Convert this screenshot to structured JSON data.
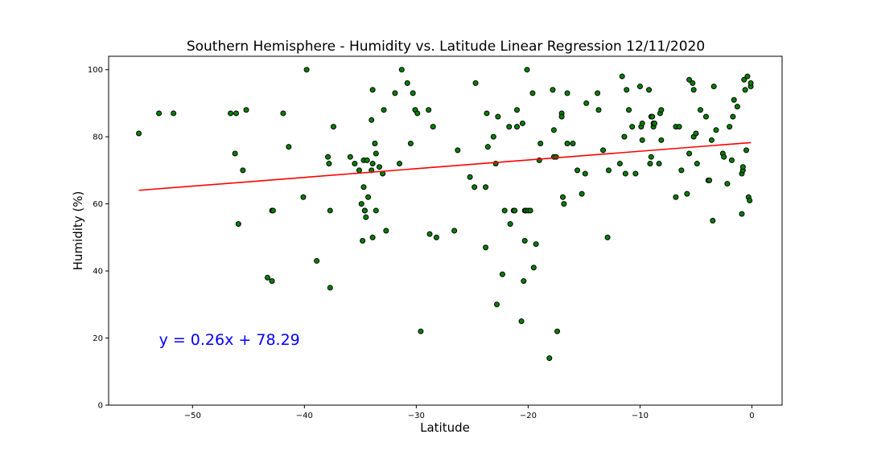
{
  "chart_data": {
    "type": "scatter",
    "title": "Southern Hemisphere - Humidity vs. Latitude Linear Regression 12/11/2020",
    "xlabel": "Latitude",
    "ylabel": "Humidity (%)",
    "xlim": [
      -57.5,
      2.7
    ],
    "ylim": [
      0,
      104
    ],
    "xticks": [
      -50,
      -40,
      -30,
      -20,
      -10,
      0
    ],
    "xtick_labels": [
      "−50",
      "−40",
      "−30",
      "−20",
      "−10",
      "0"
    ],
    "yticks": [
      0,
      20,
      40,
      60,
      80,
      100
    ],
    "ytick_labels": [
      "0",
      "20",
      "40",
      "60",
      "80",
      "100"
    ],
    "grid": false,
    "point_color": "#008000",
    "point_edge_color": "#000000",
    "line_color": "#ff0000",
    "equation_color": "#0000ff",
    "regression": {
      "slope": 0.26,
      "intercept": 78.29,
      "x_range": [
        -54.8,
        -0.1
      ]
    },
    "equation_text": "y = 0.26x + 78.29",
    "equation_position": {
      "x": -53,
      "y": 18
    },
    "points": [
      [
        -54.8,
        81
      ],
      [
        -53.0,
        87
      ],
      [
        -51.7,
        87
      ],
      [
        -46.6,
        87
      ],
      [
        -46.1,
        87
      ],
      [
        -46.2,
        75
      ],
      [
        -45.9,
        54
      ],
      [
        -45.5,
        70
      ],
      [
        -45.2,
        88
      ],
      [
        -43.3,
        38
      ],
      [
        -42.9,
        37
      ],
      [
        -42.9,
        58
      ],
      [
        -42.8,
        58
      ],
      [
        -41.9,
        87
      ],
      [
        -41.4,
        77
      ],
      [
        -40.1,
        62
      ],
      [
        -39.8,
        100
      ],
      [
        -38.9,
        43
      ],
      [
        -37.9,
        74
      ],
      [
        -37.8,
        72
      ],
      [
        -37.7,
        58
      ],
      [
        -37.7,
        35
      ],
      [
        -37.4,
        83
      ],
      [
        -35.9,
        74
      ],
      [
        -35.5,
        72
      ],
      [
        -35.1,
        70
      ],
      [
        -34.9,
        60
      ],
      [
        -34.7,
        73
      ],
      [
        -34.8,
        49
      ],
      [
        -34.6,
        58
      ],
      [
        -34.6,
        58
      ],
      [
        -34.5,
        56
      ],
      [
        -34.4,
        73
      ],
      [
        -34.7,
        65
      ],
      [
        -34.3,
        62
      ],
      [
        -34.0,
        70
      ],
      [
        -33.9,
        72
      ],
      [
        -33.9,
        50
      ],
      [
        -33.9,
        94
      ],
      [
        -34.0,
        85
      ],
      [
        -33.7,
        78
      ],
      [
        -33.6,
        75
      ],
      [
        -33.6,
        58
      ],
      [
        -33.3,
        71
      ],
      [
        -33.0,
        69
      ],
      [
        -32.9,
        88
      ],
      [
        -32.7,
        52
      ],
      [
        -31.9,
        93
      ],
      [
        -31.5,
        72
      ],
      [
        -31.3,
        100
      ],
      [
        -30.8,
        96
      ],
      [
        -30.5,
        78
      ],
      [
        -30.3,
        93
      ],
      [
        -30.1,
        88
      ],
      [
        -29.9,
        87
      ],
      [
        -29.6,
        22
      ],
      [
        -28.9,
        88
      ],
      [
        -28.8,
        51
      ],
      [
        -28.5,
        83
      ],
      [
        -28.2,
        50
      ],
      [
        -26.6,
        52
      ],
      [
        -26.3,
        76
      ],
      [
        -25.2,
        68
      ],
      [
        -24.8,
        65
      ],
      [
        -24.7,
        96
      ],
      [
        -23.8,
        65
      ],
      [
        -23.7,
        87
      ],
      [
        -23.6,
        77
      ],
      [
        -23.8,
        47
      ],
      [
        -23.1,
        80
      ],
      [
        -22.9,
        72
      ],
      [
        -22.7,
        86
      ],
      [
        -22.8,
        30
      ],
      [
        -22.3,
        39
      ],
      [
        -22.1,
        58
      ],
      [
        -21.7,
        83
      ],
      [
        -21.6,
        54
      ],
      [
        -21.3,
        58
      ],
      [
        -21.2,
        58
      ],
      [
        -21.0,
        88
      ],
      [
        -21.0,
        83
      ],
      [
        -20.6,
        25
      ],
      [
        -20.5,
        84
      ],
      [
        -20.3,
        49
      ],
      [
        -20.4,
        37
      ],
      [
        -20.3,
        58
      ],
      [
        -20.2,
        58
      ],
      [
        -20.1,
        100
      ],
      [
        -20.0,
        58
      ],
      [
        -19.8,
        58
      ],
      [
        -19.6,
        93
      ],
      [
        -19.5,
        41
      ],
      [
        -19.3,
        48
      ],
      [
        -19.0,
        73
      ],
      [
        -18.9,
        78
      ],
      [
        -18.1,
        14
      ],
      [
        -17.8,
        94
      ],
      [
        -17.7,
        74
      ],
      [
        -17.7,
        82
      ],
      [
        -17.5,
        74
      ],
      [
        -17.4,
        22
      ],
      [
        -17.0,
        87
      ],
      [
        -17.0,
        86
      ],
      [
        -16.9,
        62
      ],
      [
        -16.8,
        60
      ],
      [
        -16.5,
        93
      ],
      [
        -16.5,
        78
      ],
      [
        -16.0,
        78
      ],
      [
        -15.6,
        70
      ],
      [
        -15.2,
        63
      ],
      [
        -14.9,
        69
      ],
      [
        -14.8,
        90
      ],
      [
        -13.8,
        93
      ],
      [
        -13.7,
        88
      ],
      [
        -13.3,
        76
      ],
      [
        -12.9,
        50
      ],
      [
        -12.8,
        70
      ],
      [
        -11.8,
        72
      ],
      [
        -11.6,
        98
      ],
      [
        -11.4,
        80
      ],
      [
        -11.3,
        69
      ],
      [
        -11.2,
        94
      ],
      [
        -11.0,
        88
      ],
      [
        -10.7,
        83
      ],
      [
        -10.4,
        69
      ],
      [
        -10.0,
        95
      ],
      [
        -9.9,
        83
      ],
      [
        -9.8,
        84
      ],
      [
        -9.8,
        79
      ],
      [
        -9.2,
        94
      ],
      [
        -9.1,
        72
      ],
      [
        -9.0,
        74
      ],
      [
        -9.0,
        86
      ],
      [
        -8.9,
        86
      ],
      [
        -8.8,
        83
      ],
      [
        -8.8,
        84
      ],
      [
        -8.7,
        84
      ],
      [
        -8.3,
        72
      ],
      [
        -8.2,
        87
      ],
      [
        -8.1,
        88
      ],
      [
        -8.1,
        79
      ],
      [
        -6.8,
        62
      ],
      [
        -6.8,
        83
      ],
      [
        -6.5,
        83
      ],
      [
        -6.3,
        70
      ],
      [
        -5.8,
        63
      ],
      [
        -5.6,
        75
      ],
      [
        -5.6,
        97
      ],
      [
        -5.3,
        96
      ],
      [
        -5.2,
        94
      ],
      [
        -5.2,
        80
      ],
      [
        -5.0,
        81
      ],
      [
        -4.9,
        72
      ],
      [
        -4.6,
        88
      ],
      [
        -4.1,
        86
      ],
      [
        -3.9,
        67
      ],
      [
        -3.8,
        67
      ],
      [
        -3.6,
        79
      ],
      [
        -3.5,
        55
      ],
      [
        -3.4,
        95
      ],
      [
        -3.2,
        82
      ],
      [
        -2.6,
        75
      ],
      [
        -2.5,
        74
      ],
      [
        -2.2,
        66
      ],
      [
        -2.0,
        83
      ],
      [
        -1.8,
        73
      ],
      [
        -1.7,
        86
      ],
      [
        -1.6,
        91
      ],
      [
        -1.3,
        89
      ],
      [
        -0.9,
        57
      ],
      [
        -0.9,
        69
      ],
      [
        -0.8,
        70
      ],
      [
        -0.8,
        71
      ],
      [
        -0.7,
        97
      ],
      [
        -0.6,
        94
      ],
      [
        -0.5,
        76
      ],
      [
        -0.4,
        98
      ],
      [
        -0.3,
        62
      ],
      [
        -0.2,
        61
      ],
      [
        -0.1,
        95
      ],
      [
        -0.1,
        96
      ]
    ]
  }
}
